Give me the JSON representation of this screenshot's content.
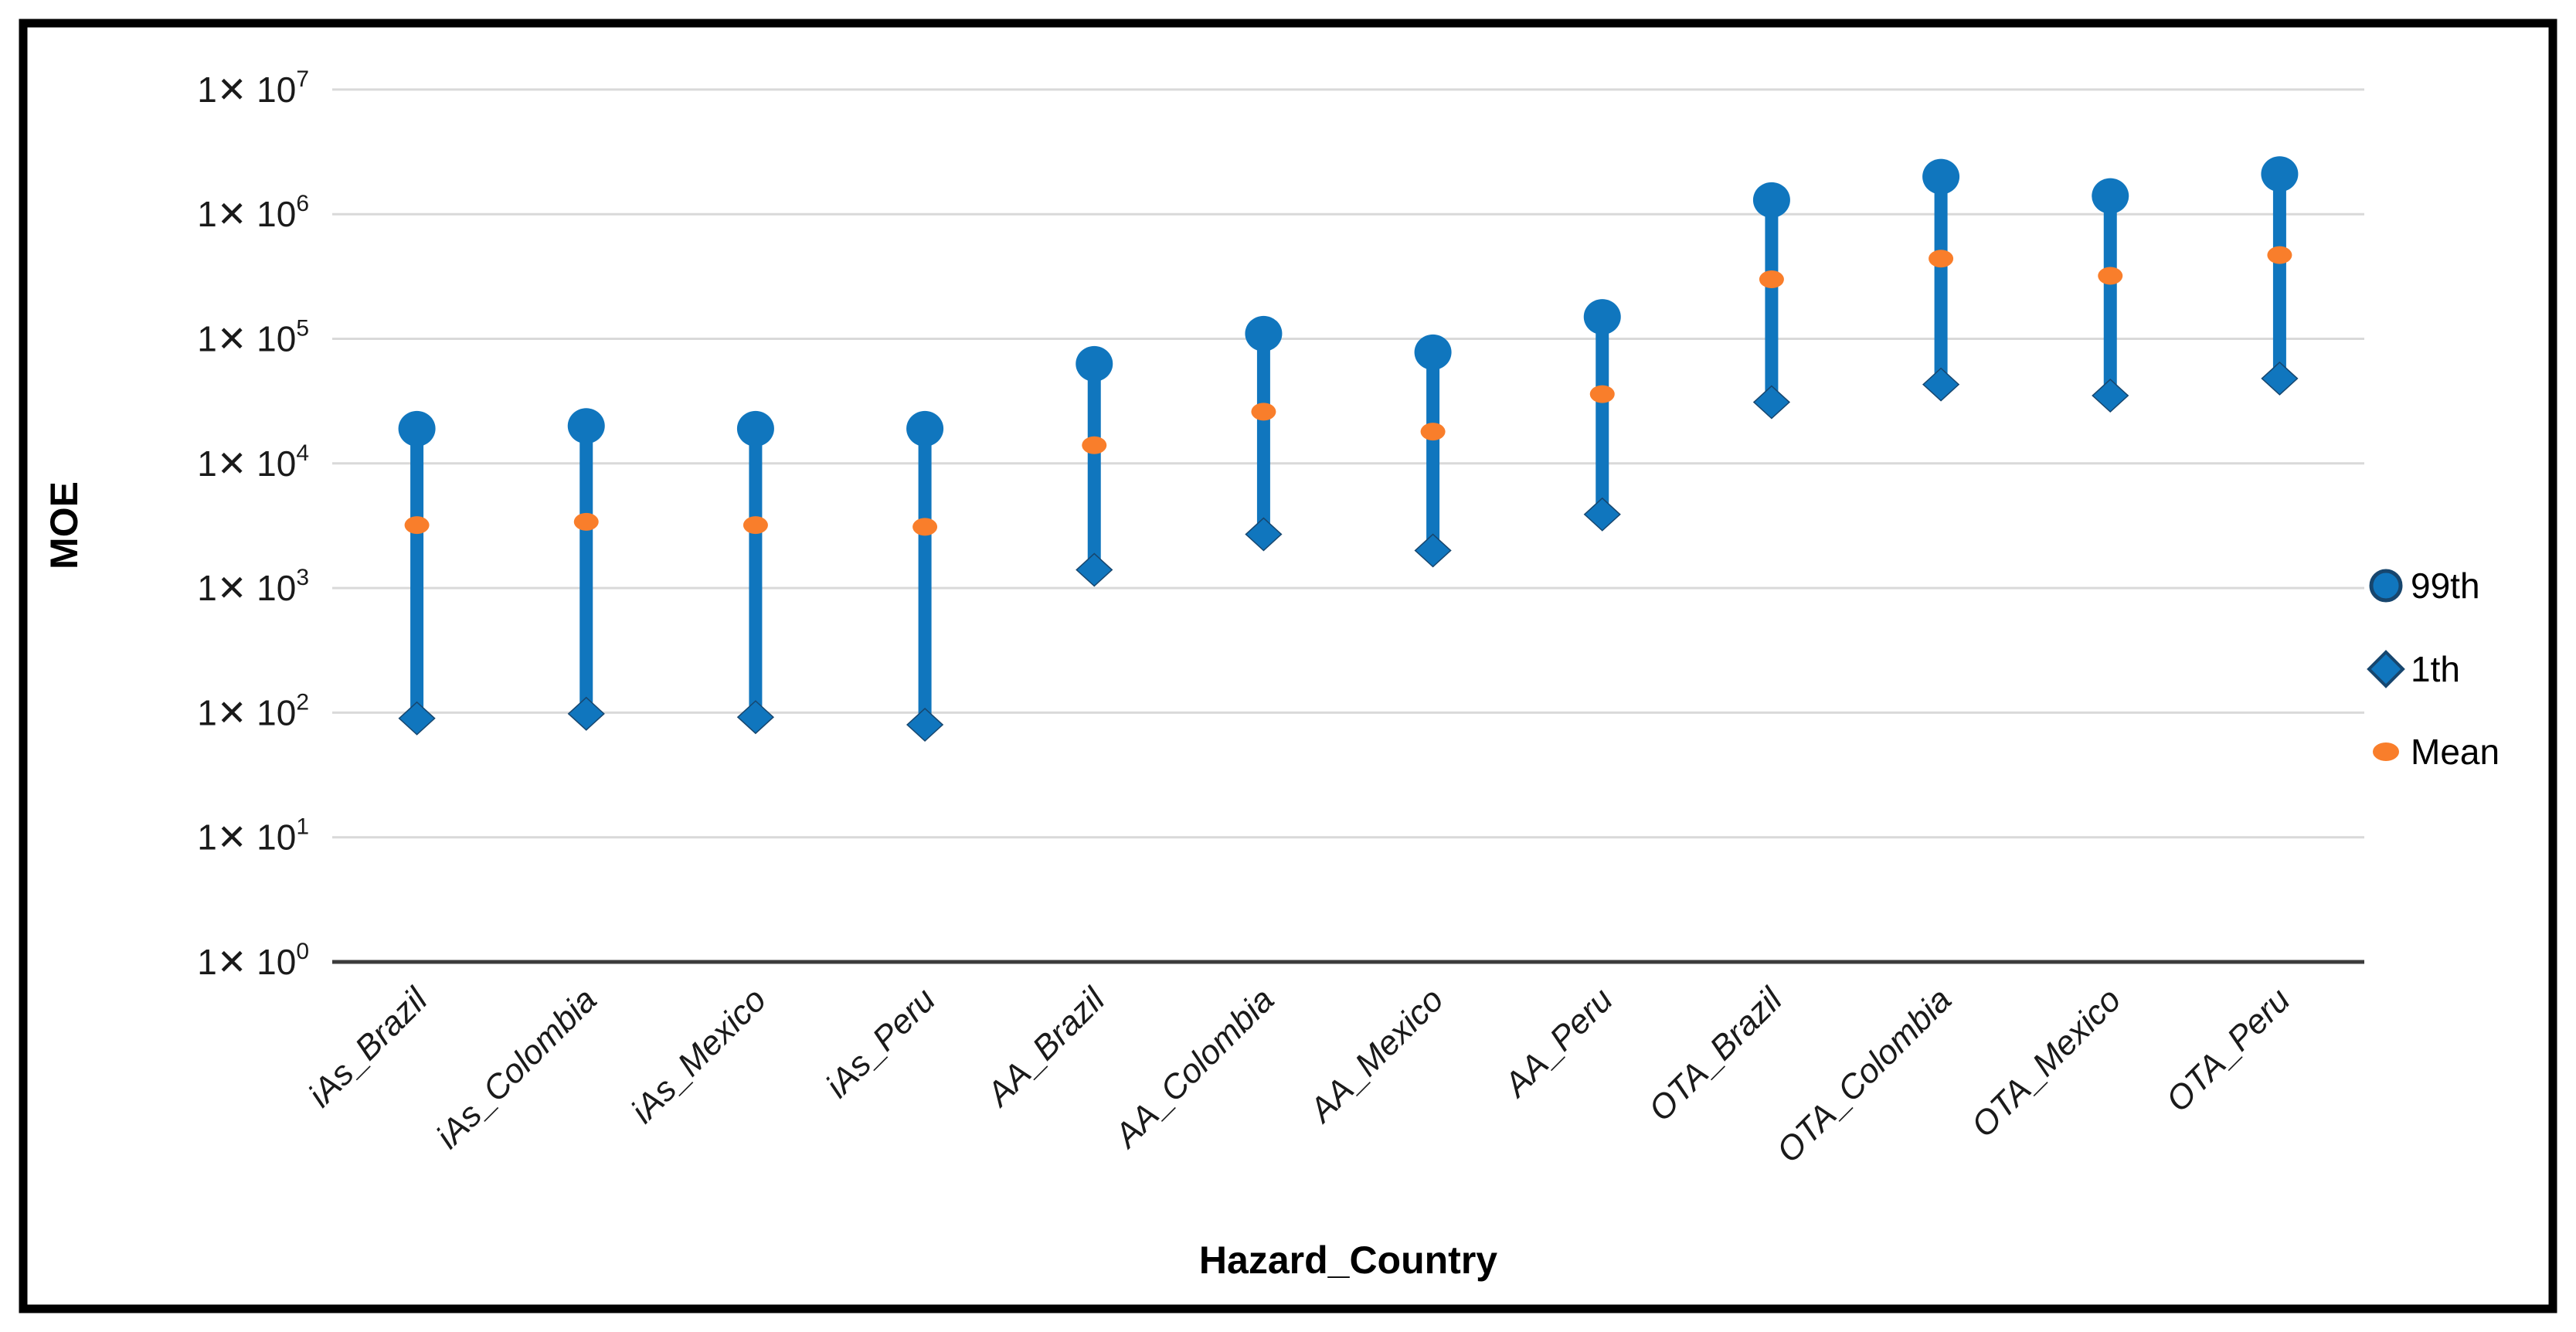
{
  "figure": {
    "background": "#ffffff",
    "border_color": "#000000"
  },
  "colors": {
    "marker_blue": "#1076BE",
    "marker_blue_dark_edge": "#17466E",
    "mean_orange": "#F97E2B",
    "gridline": "#D9D9D9",
    "axis_line": "#3C3C3C",
    "text": "#000000"
  },
  "chart_data": {
    "type": "scatter",
    "subtype": "high-low-range-log",
    "title": "",
    "xlabel": "Hazard_Country",
    "ylabel": "MOE",
    "y_scale": "log",
    "ylim": [
      1,
      10000000
    ],
    "grid": true,
    "legend_position": "right",
    "y_ticks": [
      {
        "prefix": "1✕ 10",
        "exp": "7",
        "value": 10000000
      },
      {
        "prefix": "1✕ 10",
        "exp": "6",
        "value": 1000000
      },
      {
        "prefix": "1✕ 10",
        "exp": "5",
        "value": 100000
      },
      {
        "prefix": "1✕ 10",
        "exp": "4",
        "value": 10000
      },
      {
        "prefix": "1✕ 10",
        "exp": "3",
        "value": 1000
      },
      {
        "prefix": "1✕ 10",
        "exp": "2",
        "value": 100
      },
      {
        "prefix": "1✕ 10",
        "exp": "1",
        "value": 10
      },
      {
        "prefix": "1✕ 10",
        "exp": "0",
        "value": 1
      }
    ],
    "categories": [
      "iAs_Brazil",
      "iAs_Colombia",
      "iAs_Mexico",
      "iAs_Peru",
      "AA_Brazil",
      "AA_Colombia",
      "AA_Mexico",
      "AA_Peru",
      "OTA_Brazil",
      "OTA_Colombia",
      "OTA_Mexico",
      "OTA_Peru"
    ],
    "series": [
      {
        "name": "99th",
        "marker": "circle",
        "color": "#1076BE",
        "values": [
          19000,
          20000,
          19000,
          19000,
          63000,
          110000,
          78000,
          150000,
          1300000,
          2000000,
          1400000,
          2100000
        ]
      },
      {
        "name": "1th",
        "marker": "diamond",
        "color": "#1076BE",
        "values": [
          90,
          98,
          92,
          80,
          1400,
          2700,
          2000,
          3900,
          31000,
          43000,
          35000,
          48000
        ]
      },
      {
        "name": "Mean",
        "marker": "dot",
        "color": "#F97E2B",
        "values": [
          3200,
          3400,
          3200,
          3100,
          14000,
          26000,
          18000,
          36000,
          300000,
          440000,
          320000,
          470000
        ]
      }
    ]
  }
}
